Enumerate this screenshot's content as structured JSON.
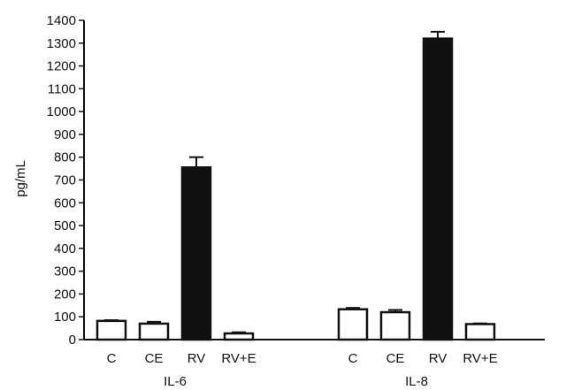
{
  "chart_data": {
    "type": "bar",
    "title": "",
    "xlabel": "",
    "ylabel": "pg/mL",
    "ylim": [
      0,
      1400
    ],
    "yticks": [
      0,
      100,
      200,
      300,
      400,
      500,
      600,
      700,
      800,
      900,
      1000,
      1100,
      1200,
      1300,
      1400
    ],
    "grid": false,
    "groups": [
      {
        "name": "IL-6",
        "categories": [
          "C",
          "CE",
          "RV",
          "RV+E"
        ],
        "values": [
          82,
          70,
          755,
          27
        ],
        "errors": [
          3,
          8,
          45,
          5
        ],
        "fills": [
          "#ffffff",
          "#ffffff",
          "#111111",
          "#ffffff"
        ]
      },
      {
        "name": "IL-8",
        "categories": [
          "C",
          "CE",
          "RV",
          "RV+E"
        ],
        "values": [
          133,
          120,
          1320,
          68
        ],
        "errors": [
          6,
          10,
          30,
          3
        ],
        "fills": [
          "#ffffff",
          "#ffffff",
          "#111111",
          "#ffffff"
        ]
      }
    ]
  }
}
